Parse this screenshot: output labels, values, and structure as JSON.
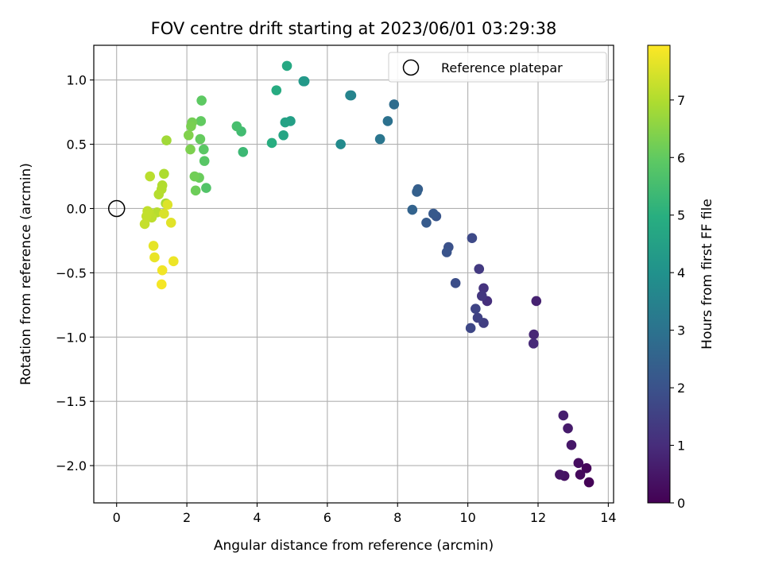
{
  "chart_data": {
    "type": "scatter",
    "title": "FOV centre drift starting at 2023/06/01 03:29:38",
    "xlabel": "Angular distance from reference (arcmin)",
    "ylabel": "Rotation from reference (arcmin)",
    "xlim": [
      -0.65,
      14.15
    ],
    "ylim": [
      -2.29,
      1.27
    ],
    "xticks": [
      0,
      2,
      4,
      6,
      8,
      10,
      12,
      14
    ],
    "yticks": [
      -2.0,
      -1.5,
      -1.0,
      -0.5,
      0.0,
      0.5,
      1.0
    ],
    "xtick_labels": [
      "0",
      "2",
      "4",
      "6",
      "8",
      "10",
      "12",
      "14"
    ],
    "ytick_labels": [
      "−2.0",
      "−1.5",
      "−1.0",
      "−0.5",
      "0.0",
      "0.5",
      "1.0"
    ],
    "grid": true,
    "legend": {
      "position": "top-right",
      "label": "Reference platepar"
    },
    "reference_point": {
      "x": 0.0,
      "y": 0.0
    },
    "colorbar": {
      "label": "Hours from first FF file",
      "range": [
        0,
        7.95
      ],
      "ticks": [
        0,
        1,
        2,
        3,
        4,
        5,
        6,
        7
      ],
      "tick_labels": [
        "0",
        "1",
        "2",
        "3",
        "4",
        "5",
        "6",
        "7"
      ],
      "colormap": "viridis"
    },
    "points": [
      {
        "x": 13.45,
        "y": -2.13,
        "c": 0.05
      },
      {
        "x": 13.38,
        "y": -2.02,
        "c": 0.12
      },
      {
        "x": 13.2,
        "y": -2.07,
        "c": 0.2
      },
      {
        "x": 13.15,
        "y": -1.98,
        "c": 0.28
      },
      {
        "x": 12.75,
        "y": -2.08,
        "c": 0.35
      },
      {
        "x": 12.62,
        "y": -2.07,
        "c": 0.42
      },
      {
        "x": 12.95,
        "y": -1.84,
        "c": 0.5
      },
      {
        "x": 12.85,
        "y": -1.71,
        "c": 0.58
      },
      {
        "x": 12.72,
        "y": -1.61,
        "c": 0.66
      },
      {
        "x": 11.95,
        "y": -0.72,
        "c": 0.75
      },
      {
        "x": 11.88,
        "y": -0.98,
        "c": 0.85
      },
      {
        "x": 11.87,
        "y": -1.05,
        "c": 0.92
      },
      {
        "x": 10.55,
        "y": -0.72,
        "c": 1.05
      },
      {
        "x": 10.45,
        "y": -0.62,
        "c": 1.15
      },
      {
        "x": 10.4,
        "y": -0.68,
        "c": 1.25
      },
      {
        "x": 10.32,
        "y": -0.47,
        "c": 1.35
      },
      {
        "x": 10.45,
        "y": -0.89,
        "c": 1.45
      },
      {
        "x": 10.28,
        "y": -0.85,
        "c": 1.55
      },
      {
        "x": 10.22,
        "y": -0.78,
        "c": 1.62
      },
      {
        "x": 10.08,
        "y": -0.93,
        "c": 1.7
      },
      {
        "x": 10.12,
        "y": -0.23,
        "c": 1.78
      },
      {
        "x": 9.65,
        "y": -0.58,
        "c": 1.88
      },
      {
        "x": 9.45,
        "y": -0.3,
        "c": 1.95
      },
      {
        "x": 9.4,
        "y": -0.34,
        "c": 2.05
      },
      {
        "x": 9.1,
        "y": -0.06,
        "c": 2.12
      },
      {
        "x": 9.02,
        "y": -0.04,
        "c": 2.2
      },
      {
        "x": 8.82,
        "y": -0.11,
        "c": 2.28
      },
      {
        "x": 8.58,
        "y": 0.15,
        "c": 2.35
      },
      {
        "x": 8.55,
        "y": 0.13,
        "c": 2.42
      },
      {
        "x": 8.42,
        "y": -0.01,
        "c": 2.5
      },
      {
        "x": 7.9,
        "y": 0.81,
        "c": 2.8
      },
      {
        "x": 7.72,
        "y": 0.68,
        "c": 2.95
      },
      {
        "x": 7.5,
        "y": 0.54,
        "c": 3.1
      },
      {
        "x": 6.68,
        "y": 0.88,
        "c": 3.5
      },
      {
        "x": 6.65,
        "y": 0.88,
        "c": 3.55
      },
      {
        "x": 6.38,
        "y": 0.5,
        "c": 3.75
      },
      {
        "x": 5.35,
        "y": 0.99,
        "c": 4.2
      },
      {
        "x": 5.32,
        "y": 0.99,
        "c": 4.25
      },
      {
        "x": 4.95,
        "y": 0.68,
        "c": 4.45
      },
      {
        "x": 4.8,
        "y": 0.67,
        "c": 4.55
      },
      {
        "x": 4.75,
        "y": 0.57,
        "c": 4.65
      },
      {
        "x": 4.85,
        "y": 1.11,
        "c": 4.75
      },
      {
        "x": 4.55,
        "y": 0.92,
        "c": 4.85
      },
      {
        "x": 4.42,
        "y": 0.51,
        "c": 4.95
      },
      {
        "x": 3.6,
        "y": 0.44,
        "c": 5.35
      },
      {
        "x": 3.55,
        "y": 0.6,
        "c": 5.45
      },
      {
        "x": 3.42,
        "y": 0.64,
        "c": 5.55
      },
      {
        "x": 2.55,
        "y": 0.16,
        "c": 5.75
      },
      {
        "x": 2.5,
        "y": 0.37,
        "c": 5.85
      },
      {
        "x": 2.48,
        "y": 0.46,
        "c": 5.9
      },
      {
        "x": 2.42,
        "y": 0.84,
        "c": 5.95
      },
      {
        "x": 2.4,
        "y": 0.68,
        "c": 6.0
      },
      {
        "x": 2.38,
        "y": 0.54,
        "c": 6.05
      },
      {
        "x": 2.35,
        "y": 0.24,
        "c": 6.1
      },
      {
        "x": 2.25,
        "y": 0.14,
        "c": 6.15
      },
      {
        "x": 2.22,
        "y": 0.25,
        "c": 6.2
      },
      {
        "x": 2.15,
        "y": 0.67,
        "c": 6.25
      },
      {
        "x": 2.12,
        "y": 0.64,
        "c": 6.3
      },
      {
        "x": 2.1,
        "y": 0.46,
        "c": 6.35
      },
      {
        "x": 2.05,
        "y": 0.57,
        "c": 6.4
      },
      {
        "x": 1.42,
        "y": 0.53,
        "c": 6.8
      },
      {
        "x": 1.4,
        "y": 0.04,
        "c": 6.9
      },
      {
        "x": 1.35,
        "y": 0.27,
        "c": 6.95
      },
      {
        "x": 1.3,
        "y": 0.18,
        "c": 7.0
      },
      {
        "x": 1.28,
        "y": 0.15,
        "c": 7.02
      },
      {
        "x": 1.2,
        "y": 0.11,
        "c": 7.05
      },
      {
        "x": 1.15,
        "y": -0.03,
        "c": 7.08
      },
      {
        "x": 0.95,
        "y": 0.25,
        "c": 7.12
      },
      {
        "x": 1.0,
        "y": -0.07,
        "c": 7.15
      },
      {
        "x": 0.92,
        "y": -0.03,
        "c": 7.18
      },
      {
        "x": 0.88,
        "y": -0.02,
        "c": 7.2
      },
      {
        "x": 0.85,
        "y": -0.06,
        "c": 7.22
      },
      {
        "x": 0.8,
        "y": -0.12,
        "c": 7.25
      },
      {
        "x": 1.35,
        "y": -0.04,
        "c": 7.5
      },
      {
        "x": 1.45,
        "y": 0.03,
        "c": 7.55
      },
      {
        "x": 1.55,
        "y": -0.11,
        "c": 7.6
      },
      {
        "x": 1.05,
        "y": -0.29,
        "c": 7.65
      },
      {
        "x": 1.08,
        "y": -0.38,
        "c": 7.7
      },
      {
        "x": 1.62,
        "y": -0.41,
        "c": 7.75
      },
      {
        "x": 1.3,
        "y": -0.48,
        "c": 7.8
      },
      {
        "x": 1.28,
        "y": -0.59,
        "c": 7.85
      }
    ]
  }
}
